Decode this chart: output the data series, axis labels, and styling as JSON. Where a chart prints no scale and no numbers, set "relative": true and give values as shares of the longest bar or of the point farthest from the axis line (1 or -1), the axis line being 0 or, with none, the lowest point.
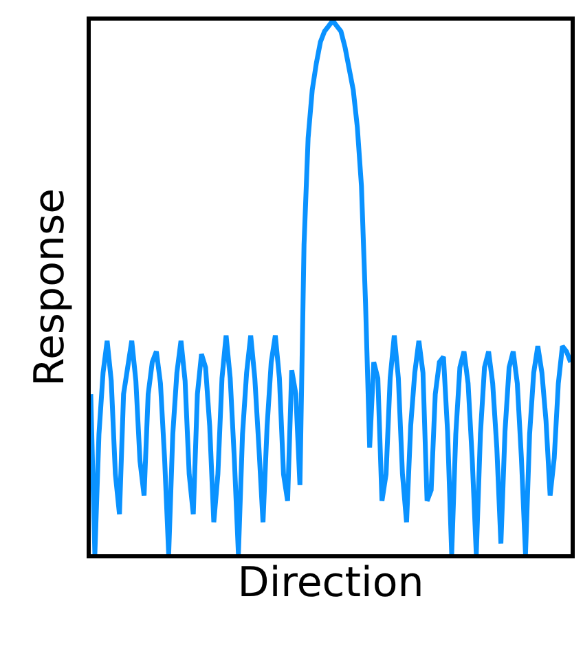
{
  "chart_data": {
    "type": "line",
    "relative": true,
    "xlabel": "Direction",
    "ylabel": "Response",
    "tick_labels": false,
    "marker": "none",
    "line_style": "solid",
    "categories": [
      null,
      null,
      null,
      null,
      null,
      null,
      null,
      null,
      null,
      null,
      null,
      null,
      null,
      null,
      null,
      null,
      null,
      null,
      null,
      null,
      null,
      null,
      null,
      null,
      null,
      null,
      null,
      null,
      null,
      null,
      null,
      null,
      null,
      null,
      null,
      null,
      null,
      null,
      null,
      null,
      null,
      null,
      null,
      null,
      null,
      null,
      null,
      null,
      null,
      null,
      null,
      null,
      null,
      null,
      null,
      null,
      null,
      null,
      null,
      null,
      null,
      null,
      null,
      null,
      null,
      null,
      null,
      null,
      null,
      null,
      null,
      null,
      null,
      null,
      null,
      null,
      null,
      null,
      null,
      null,
      null,
      null,
      null,
      null,
      null,
      null,
      null,
      null,
      null,
      null,
      null,
      null,
      null,
      null,
      null,
      null,
      null,
      null,
      null,
      null,
      null,
      null,
      null,
      null,
      null,
      null,
      null,
      null,
      null,
      null,
      null,
      null,
      null,
      null,
      null,
      null,
      null,
      null
    ],
    "series": [
      {
        "color": "#0a92ff",
        "values": [
          0.3,
          0.0,
          0.225,
          0.34,
          0.4,
          0.325,
          0.15,
          0.075,
          0.3,
          0.35,
          0.4,
          0.325,
          0.175,
          0.11,
          0.3,
          0.36,
          0.38,
          0.32,
          0.18,
          0.0,
          0.225,
          0.34,
          0.4,
          0.325,
          0.15,
          0.075,
          0.3,
          0.375,
          0.35,
          0.24,
          0.06,
          0.15,
          0.33,
          0.41,
          0.33,
          0.18,
          0.0,
          0.225,
          0.34,
          0.41,
          0.33,
          0.2,
          0.06,
          0.24,
          0.36,
          0.41,
          0.33,
          0.15,
          0.1,
          0.345,
          0.3,
          0.13,
          0.58,
          0.78,
          0.87,
          0.92,
          0.96,
          0.98,
          0.99,
          1.0,
          0.99,
          0.98,
          0.95,
          0.91,
          0.87,
          0.8,
          0.69,
          0.47,
          0.2,
          0.36,
          0.33,
          0.1,
          0.15,
          0.33,
          0.41,
          0.33,
          0.15,
          0.06,
          0.24,
          0.34,
          0.4,
          0.34,
          0.1,
          0.12,
          0.3,
          0.36,
          0.37,
          0.23,
          0.0,
          0.225,
          0.35,
          0.38,
          0.32,
          0.18,
          0.0,
          0.225,
          0.35,
          0.38,
          0.32,
          0.2,
          0.02,
          0.23,
          0.35,
          0.38,
          0.32,
          0.18,
          0.0,
          0.225,
          0.34,
          0.39,
          0.34,
          0.25,
          0.11,
          0.18,
          0.32,
          0.39,
          0.38,
          0.36
        ]
      }
    ]
  }
}
